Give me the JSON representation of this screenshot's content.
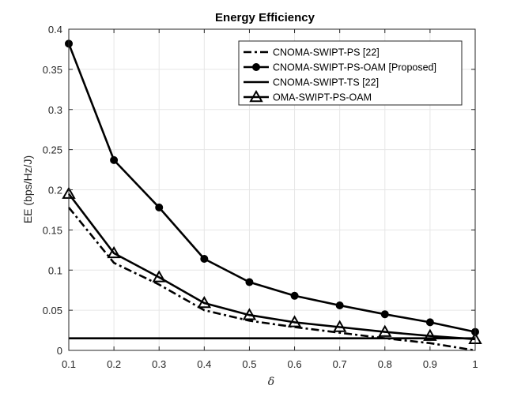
{
  "chart_data": {
    "type": "line",
    "title": "Energy Efficiency",
    "xlabel": "δ",
    "ylabel": "EE (bps/Hz/J)",
    "xlim": [
      0.1,
      1
    ],
    "ylim": [
      0,
      0.4
    ],
    "x": [
      0.1,
      0.2,
      0.3,
      0.4,
      0.5,
      0.6,
      0.7,
      0.8,
      0.9,
      1.0
    ],
    "xticks": [
      "0.1",
      "0.2",
      "0.3",
      "0.4",
      "0.5",
      "0.6",
      "0.7",
      "0.8",
      "0.9",
      "1"
    ],
    "yticks": [
      "0",
      "0.05",
      "0.1",
      "0.15",
      "0.2",
      "0.25",
      "0.3",
      "0.35",
      "0.4"
    ],
    "ytick_values": [
      0,
      0.05,
      0.1,
      0.15,
      0.2,
      0.25,
      0.3,
      0.35,
      0.4
    ],
    "grid": true,
    "legend_position": "top-right",
    "series": [
      {
        "name": "CNOMA-SWIPT-PS [22]",
        "style": "dashdot",
        "marker": "none",
        "color": "#000000",
        "values": [
          0.178,
          0.109,
          0.082,
          0.05,
          0.037,
          0.029,
          0.022,
          0.015,
          0.009,
          0.0
        ]
      },
      {
        "name": "CNOMA-SWIPT-PS-OAM [Proposed]",
        "style": "solid",
        "marker": "circle",
        "color": "#000000",
        "values": [
          0.382,
          0.237,
          0.178,
          0.114,
          0.085,
          0.068,
          0.056,
          0.045,
          0.035,
          0.023
        ]
      },
      {
        "name": "CNOMA-SWIPT-TS [22]",
        "style": "solid",
        "marker": "none",
        "color": "#000000",
        "values": [
          0.015,
          0.015,
          0.015,
          0.015,
          0.015,
          0.015,
          0.015,
          0.015,
          0.015,
          0.015
        ]
      },
      {
        "name": "OMA-SWIPT-PS-OAM",
        "style": "solid",
        "marker": "triangle",
        "color": "#000000",
        "values": [
          0.195,
          0.121,
          0.091,
          0.059,
          0.044,
          0.035,
          0.029,
          0.023,
          0.018,
          0.014
        ]
      }
    ]
  }
}
